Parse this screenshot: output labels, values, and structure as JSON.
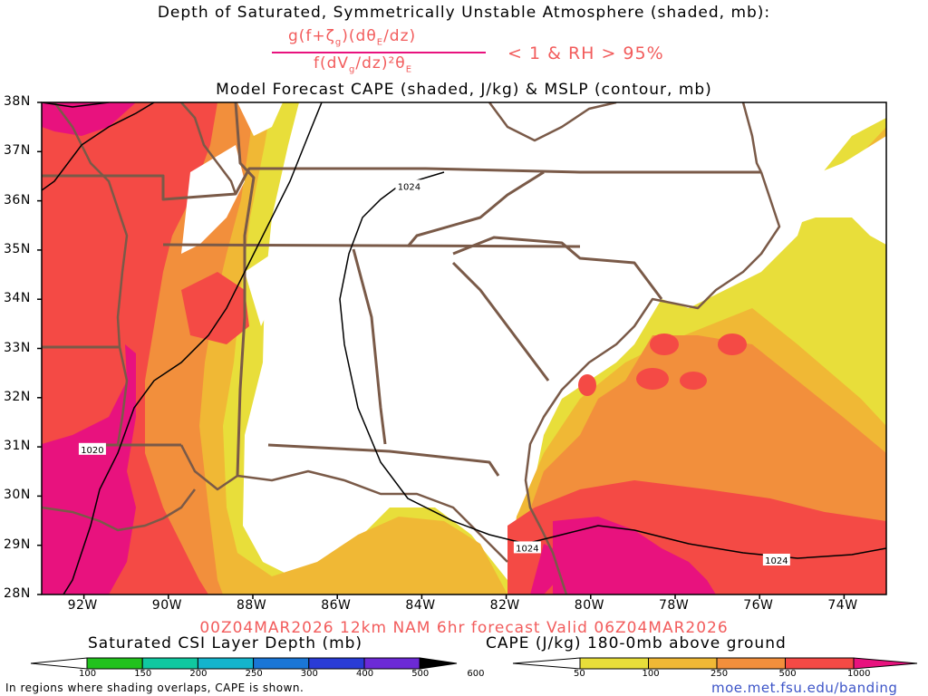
{
  "titles": {
    "line1": "Depth of Saturated, Symmetrically Unstable Atmosphere (shaded, mb):",
    "numerator": "g(f+ζ",
    "numerator_sub": "g",
    "numerator_rest": ")(dθ",
    "numerator_sub2": "E",
    "numerator_end": "/dz)",
    "denominator": "f(dV",
    "denominator_sub": "g",
    "denominator_rest": "/dz)²θ",
    "denominator_sub2": "E",
    "condition": "< 1 & RH > 95%",
    "line3": "Model Forecast CAPE (shaded, J/kg) & MSLP (contour, mb)"
  },
  "map": {
    "lat_labels": [
      "38N",
      "37N",
      "36N",
      "35N",
      "34N",
      "33N",
      "32N",
      "31N",
      "30N",
      "29N",
      "28N"
    ],
    "lon_labels": [
      "92W",
      "90W",
      "88W",
      "86W",
      "84W",
      "82W",
      "80W",
      "78W",
      "76W",
      "74W"
    ],
    "isobar_labels": [
      {
        "text": "1024",
        "lon": -84.3,
        "lat": 36.3
      },
      {
        "text": "1020",
        "lon": -91.8,
        "lat": 30.95
      },
      {
        "text": "1024",
        "lon": -81.5,
        "lat": 28.95
      },
      {
        "text": "1024",
        "lon": -75.6,
        "lat": 28.7
      }
    ],
    "colors": {
      "cape_50": "#e8de3a",
      "cape_100": "#f0b835",
      "cape_250": "#f28f3c",
      "cape_500": "#f44a45",
      "cape_1000": "#e8127e",
      "borders": "#7a5a48",
      "isobar": "#000000"
    }
  },
  "footer": {
    "valid_line": "00Z04MAR2026 12km NAM 6hr forecast Valid 06Z04MAR2026",
    "csi_title": "Saturated CSI Layer Depth (mb)",
    "csi_ticks": [
      "100",
      "150",
      "200",
      "250",
      "300",
      "400",
      "500",
      "600"
    ],
    "csi_colors": [
      "#ffffff",
      "#22c21e",
      "#10c8a0",
      "#14b4cc",
      "#1a76d6",
      "#2a3cd6",
      "#6c2ad6",
      "#000000"
    ],
    "cape_title": "CAPE (J/kg) 180-0mb above ground",
    "cape_ticks": [
      "50",
      "100",
      "250",
      "500",
      "1000"
    ],
    "cape_colors": [
      "#ffffff",
      "#e8de3a",
      "#f0b835",
      "#f28f3c",
      "#f44a45",
      "#e8127e"
    ],
    "note": "In regions where shading overlaps, CAPE is shown.",
    "credit": "moe.met.fsu.edu/banding"
  }
}
